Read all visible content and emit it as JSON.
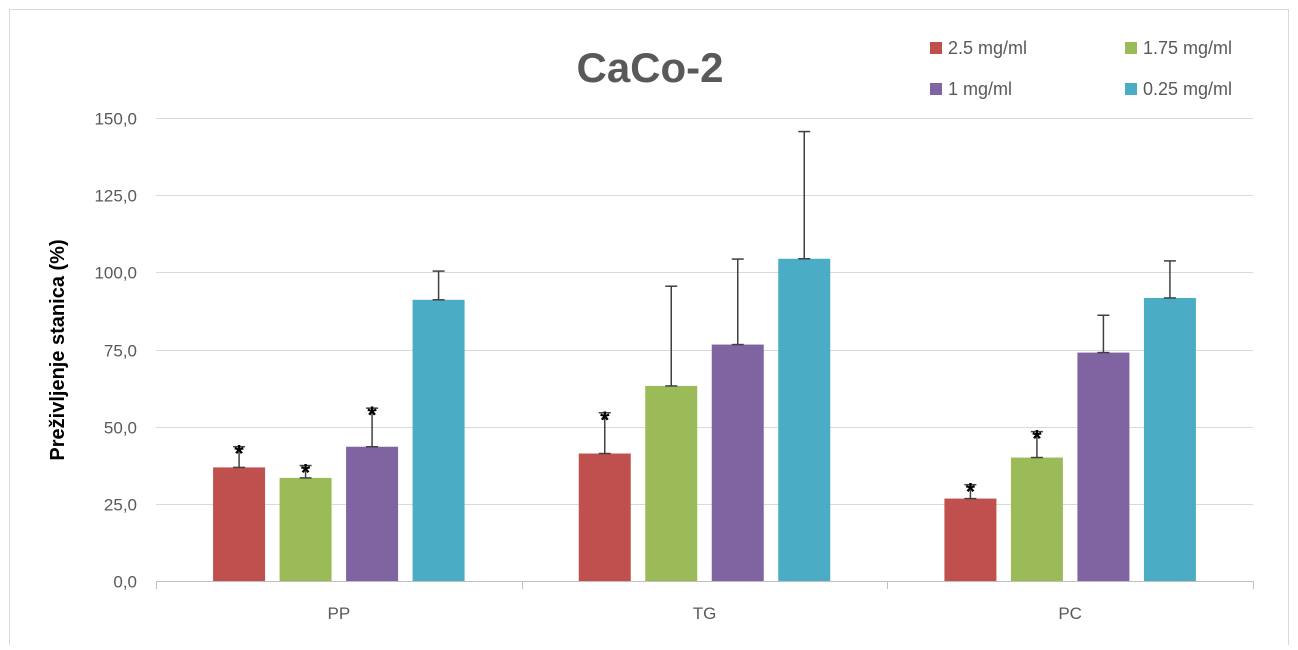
{
  "chart_data": {
    "type": "bar",
    "title": "CaCo-2",
    "xlabel": "",
    "ylabel": "Preživljenje stanica (%)",
    "ylim": [
      0,
      150
    ],
    "yticks": [
      0,
      25,
      50,
      75,
      100,
      125,
      150
    ],
    "ytick_labels": [
      "0,0",
      "25,0",
      "50,0",
      "75,0",
      "100,0",
      "125,0",
      "150,0"
    ],
    "grid": true,
    "legend_position": "top-right",
    "categories": [
      "PP",
      "TG",
      "PC"
    ],
    "series": [
      {
        "name": "2.5 mg/ml",
        "color": "#c0504d",
        "values": [
          36.8,
          41.3,
          26.7
        ],
        "errors": [
          6.7,
          13.2,
          4.5
        ],
        "significant": [
          true,
          true,
          true
        ]
      },
      {
        "name": "1.75 mg/ml",
        "color": "#9bbb59",
        "values": [
          33.4,
          63.2,
          40.0
        ],
        "errors": [
          4.0,
          32.3,
          8.4
        ],
        "significant": [
          true,
          false,
          true
        ]
      },
      {
        "name": "1 mg/ml",
        "color": "#8064a2",
        "values": [
          43.5,
          76.6,
          74.0
        ],
        "errors": [
          12.5,
          27.7,
          12.1
        ],
        "significant": [
          true,
          false,
          false
        ]
      },
      {
        "name": "0.25 mg/ml",
        "color": "#4bacc6",
        "values": [
          91.1,
          104.4,
          91.7
        ],
        "errors": [
          9.3,
          41.2,
          12.0
        ],
        "significant": [
          false,
          false,
          false
        ]
      }
    ],
    "significance_marker": "*"
  }
}
